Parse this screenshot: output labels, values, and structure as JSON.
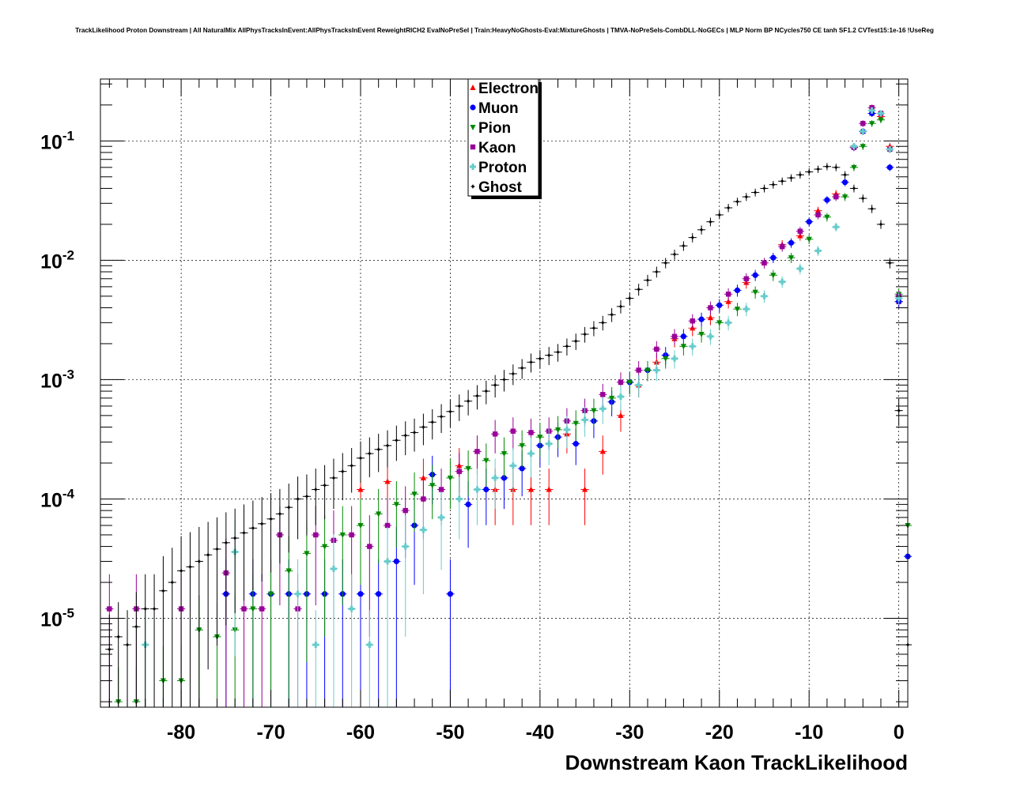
{
  "title": "TrackLikelihood Proton Downstream | All NaturalMix AllPhysTracksInEvent:AllPhysTracksInEvent ReweightRICH2 EvalNoPreSel | Train:HeavyNoGhosts-Eval:MixtureGhosts | TMVA-NoPreSels-CombDLL-NoGECs | MLP Norm BP NCycles750 CE tanh SF1.2 CVTest15:1e-16 !UseReg",
  "chart_data": {
    "type": "scatter",
    "title": "TrackLikelihood Proton Downstream | All NaturalMix AllPhysTracksInEvent:AllPhysTracksInEvent ReweightRICH2 EvalNoPreSel | Train:HeavyNoGhosts-Eval:MixtureGhosts | TMVA-NoPreSels-CombDLL-NoGECs | MLP Norm BP NCycles750 CE tanh SF1.2 CVTest15:1e-16 !UseReg",
    "xlabel": "Downstream Kaon TrackLikelihood",
    "ylabel": "",
    "xlim": [
      -89,
      1
    ],
    "ylim": [
      1.8e-06,
      0.33
    ],
    "yscale": "log",
    "grid": true,
    "legend_position": "top-center",
    "x_ticks": [
      {
        "value": -80,
        "label": "-80"
      },
      {
        "value": -70,
        "label": "-70"
      },
      {
        "value": -60,
        "label": "-60"
      },
      {
        "value": -50,
        "label": "-50"
      },
      {
        "value": -40,
        "label": "-40"
      },
      {
        "value": -30,
        "label": "-30"
      },
      {
        "value": -20,
        "label": "-20"
      },
      {
        "value": -10,
        "label": "-10"
      },
      {
        "value": 0,
        "label": "0"
      }
    ],
    "y_ticks": [
      {
        "value": 1e-05,
        "base": "10",
        "exp": "-5"
      },
      {
        "value": 0.0001,
        "base": "10",
        "exp": "-4"
      },
      {
        "value": 0.001,
        "base": "10",
        "exp": "-3"
      },
      {
        "value": 0.01,
        "base": "10",
        "exp": "-2"
      },
      {
        "value": 0.1,
        "base": "10",
        "exp": "-1"
      }
    ],
    "series": [
      {
        "name": "Electron",
        "color": "#ff0000",
        "marker": "triangle-up",
        "x": [
          -60,
          -57,
          -53,
          -49,
          -47,
          -45,
          -43,
          -41,
          -39,
          -37,
          -35,
          -33,
          -31,
          -29,
          -27,
          -25,
          -23,
          -21,
          -19,
          -17,
          -15,
          -13,
          -11,
          -9,
          -7,
          -5,
          -4,
          -3,
          -2,
          -1,
          0
        ],
        "y": [
          0.00012,
          0.00014,
          0.00015,
          0.00019,
          0.00025,
          0.00012,
          0.00012,
          0.00012,
          0.00012,
          0.00035,
          0.00012,
          0.00025,
          0.0005,
          0.0009,
          0.0014,
          0.0022,
          0.0027,
          0.0033,
          0.0045,
          0.0065,
          0.0095,
          0.0135,
          0.016,
          0.026,
          0.036,
          0.09,
          0.12,
          0.17,
          0.16,
          0.09,
          0.0045
        ]
      },
      {
        "name": "Muon",
        "color": "#0000ff",
        "marker": "circle",
        "x": [
          -75,
          -72,
          -70,
          -68,
          -66,
          -64,
          -62,
          -60,
          -58,
          -56,
          -54,
          -52,
          -50,
          -48,
          -46,
          -44,
          -42,
          -40,
          -38,
          -36,
          -34,
          -32,
          -30,
          -28,
          -26,
          -24,
          -22,
          -20,
          -18,
          -16,
          -14,
          -12,
          -10,
          -8,
          -6,
          -5,
          -4,
          -3,
          -2,
          -1,
          0,
          1
        ],
        "y": [
          1.6e-05,
          1.6e-05,
          1.6e-05,
          1.6e-05,
          1.6e-05,
          1.6e-05,
          1.6e-05,
          1.6e-05,
          1.6e-05,
          3e-05,
          6e-05,
          0.00016,
          1.6e-05,
          9e-05,
          0.00012,
          0.00015,
          0.00018,
          0.00028,
          0.00033,
          0.00029,
          0.00045,
          0.00065,
          0.00095,
          0.0012,
          0.0016,
          0.0023,
          0.0032,
          0.0042,
          0.0056,
          0.0075,
          0.0105,
          0.014,
          0.021,
          0.032,
          0.045,
          0.088,
          0.12,
          0.17,
          0.17,
          0.06,
          0.0045,
          3.3e-05
        ]
      },
      {
        "name": "Pion",
        "color": "#008800",
        "marker": "triangle-down",
        "x": [
          -87,
          -85,
          -82,
          -80,
          -78,
          -76,
          -74,
          -72,
          -70,
          -68,
          -66,
          -64,
          -62,
          -60,
          -58,
          -56,
          -54,
          -52,
          -50,
          -48,
          -46,
          -44,
          -42,
          -40,
          -38,
          -36,
          -34,
          -32,
          -30,
          -28,
          -26,
          -24,
          -22,
          -20,
          -18,
          -16,
          -14,
          -12,
          -10,
          -8,
          -6,
          -5,
          -4,
          -3,
          -2,
          -1,
          0,
          1
        ],
        "y": [
          2e-06,
          2e-06,
          3e-06,
          3e-06,
          8e-06,
          7e-06,
          8e-06,
          1.2e-05,
          1.6e-05,
          2.5e-05,
          3.5e-05,
          4e-05,
          5e-05,
          6e-05,
          7.5e-05,
          9e-05,
          0.00011,
          0.00013,
          0.00015,
          0.00018,
          0.00021,
          0.00024,
          0.00028,
          0.00033,
          0.00038,
          0.00043,
          0.00055,
          0.0007,
          0.00095,
          0.0012,
          0.0015,
          0.0019,
          0.0024,
          0.003,
          0.0039,
          0.0054,
          0.0075,
          0.0105,
          0.015,
          0.023,
          0.034,
          0.06,
          0.09,
          0.14,
          0.15,
          0.085,
          0.0052,
          6e-05
        ]
      },
      {
        "name": "Kaon",
        "color": "#990099",
        "marker": "square",
        "x": [
          -88,
          -85,
          -80,
          -75,
          -73,
          -71,
          -69,
          -67,
          -65,
          -63,
          -61,
          -59,
          -57,
          -55,
          -53,
          -51,
          -49,
          -47,
          -45,
          -43,
          -41,
          -39,
          -37,
          -35,
          -33,
          -31,
          -29,
          -27,
          -25,
          -23,
          -21,
          -19,
          -17,
          -15,
          -13,
          -11,
          -9,
          -7,
          -5,
          -4,
          -3,
          -2,
          -1,
          0
        ],
        "y": [
          1.2e-05,
          1.2e-05,
          1.2e-05,
          2.4e-05,
          1.2e-05,
          1.2e-05,
          5e-05,
          1.2e-05,
          5e-05,
          4.5e-05,
          5e-05,
          4e-05,
          6e-05,
          8e-05,
          0.0001,
          0.00012,
          0.00017,
          0.00025,
          0.00035,
          0.00037,
          0.00036,
          0.00037,
          0.00045,
          0.00055,
          0.00075,
          0.00095,
          0.0012,
          0.0018,
          0.0023,
          0.0031,
          0.004,
          0.0052,
          0.007,
          0.0095,
          0.013,
          0.0175,
          0.024,
          0.034,
          0.088,
          0.14,
          0.19,
          0.17,
          0.085,
          0.005
        ]
      },
      {
        "name": "Proton",
        "color": "#66cccc",
        "marker": "cross",
        "x": [
          -84,
          -74,
          -67,
          -65,
          -63,
          -61,
          -59,
          -57,
          -55,
          -53,
          -51,
          -49,
          -47,
          -45,
          -43,
          -41,
          -39,
          -37,
          -35,
          -33,
          -31,
          -29,
          -27,
          -25,
          -23,
          -21,
          -19,
          -17,
          -15,
          -13,
          -11,
          -9,
          -7,
          -5,
          -4,
          -3,
          -2,
          -1,
          0
        ],
        "y": [
          6e-06,
          3.6e-05,
          1.6e-05,
          6e-06,
          2.6e-05,
          1.2e-05,
          6e-06,
          3e-05,
          4e-05,
          5.5e-05,
          7e-05,
          0.0001,
          0.00012,
          0.00015,
          0.00019,
          0.00024,
          0.00029,
          0.00038,
          0.00046,
          0.00057,
          0.00072,
          0.0009,
          0.0012,
          0.0015,
          0.0019,
          0.0023,
          0.003,
          0.0039,
          0.005,
          0.0066,
          0.0085,
          0.012,
          0.019,
          0.09,
          0.12,
          0.18,
          0.17,
          0.085,
          0.0048
        ]
      },
      {
        "name": "Ghost",
        "color": "#000000",
        "marker": "star",
        "x": [
          -88,
          -87,
          -86,
          -85,
          -84,
          -83,
          -82,
          -81,
          -80,
          -79,
          -78,
          -77,
          -76,
          -75,
          -74,
          -73,
          -72,
          -71,
          -70,
          -69,
          -68,
          -67,
          -66,
          -65,
          -64,
          -63,
          -62,
          -61,
          -60,
          -59,
          -58,
          -57,
          -56,
          -55,
          -54,
          -53,
          -52,
          -51,
          -50,
          -49,
          -48,
          -47,
          -46,
          -45,
          -44,
          -43,
          -42,
          -41,
          -40,
          -39,
          -38,
          -37,
          -36,
          -35,
          -34,
          -33,
          -32,
          -31,
          -30,
          -29,
          -28,
          -27,
          -26,
          -25,
          -24,
          -23,
          -22,
          -21,
          -20,
          -19,
          -18,
          -17,
          -16,
          -15,
          -14,
          -13,
          -12,
          -11,
          -10,
          -9,
          -8,
          -7,
          -6,
          -5,
          -4,
          -3,
          -2,
          -1,
          0,
          1
        ],
        "y": [
          5.5e-06,
          7e-06,
          6e-06,
          8.5e-06,
          1.2e-05,
          1.2e-05,
          1.7e-05,
          2e-05,
          2.5e-05,
          2.7e-05,
          3e-05,
          3.4e-05,
          3.8e-05,
          4.3e-05,
          4.7e-05,
          5.2e-05,
          5.7e-05,
          6.2e-05,
          6.8e-05,
          7.5e-05,
          8.5e-05,
          0.0001,
          0.000105,
          0.00012,
          0.00013,
          0.00015,
          0.00017,
          0.00019,
          0.00022,
          0.00024,
          0.00026,
          0.00028,
          0.00031,
          0.00034,
          0.00036,
          0.0004,
          0.00044,
          0.00049,
          0.00054,
          0.0006,
          0.00066,
          0.00073,
          0.0008,
          0.0009,
          0.001,
          0.00112,
          0.00125,
          0.0014,
          0.0015,
          0.0016,
          0.0017,
          0.0019,
          0.0021,
          0.0024,
          0.0027,
          0.003,
          0.0035,
          0.0041,
          0.0048,
          0.0057,
          0.0068,
          0.008,
          0.0095,
          0.0112,
          0.0132,
          0.0155,
          0.018,
          0.021,
          0.024,
          0.0275,
          0.031,
          0.034,
          0.037,
          0.04,
          0.043,
          0.046,
          0.049,
          0.052,
          0.055,
          0.058,
          0.061,
          0.06,
          0.052,
          0.04,
          0.033,
          0.027,
          0.02,
          0.0095,
          0.00055,
          6e-06
        ]
      }
    ]
  }
}
